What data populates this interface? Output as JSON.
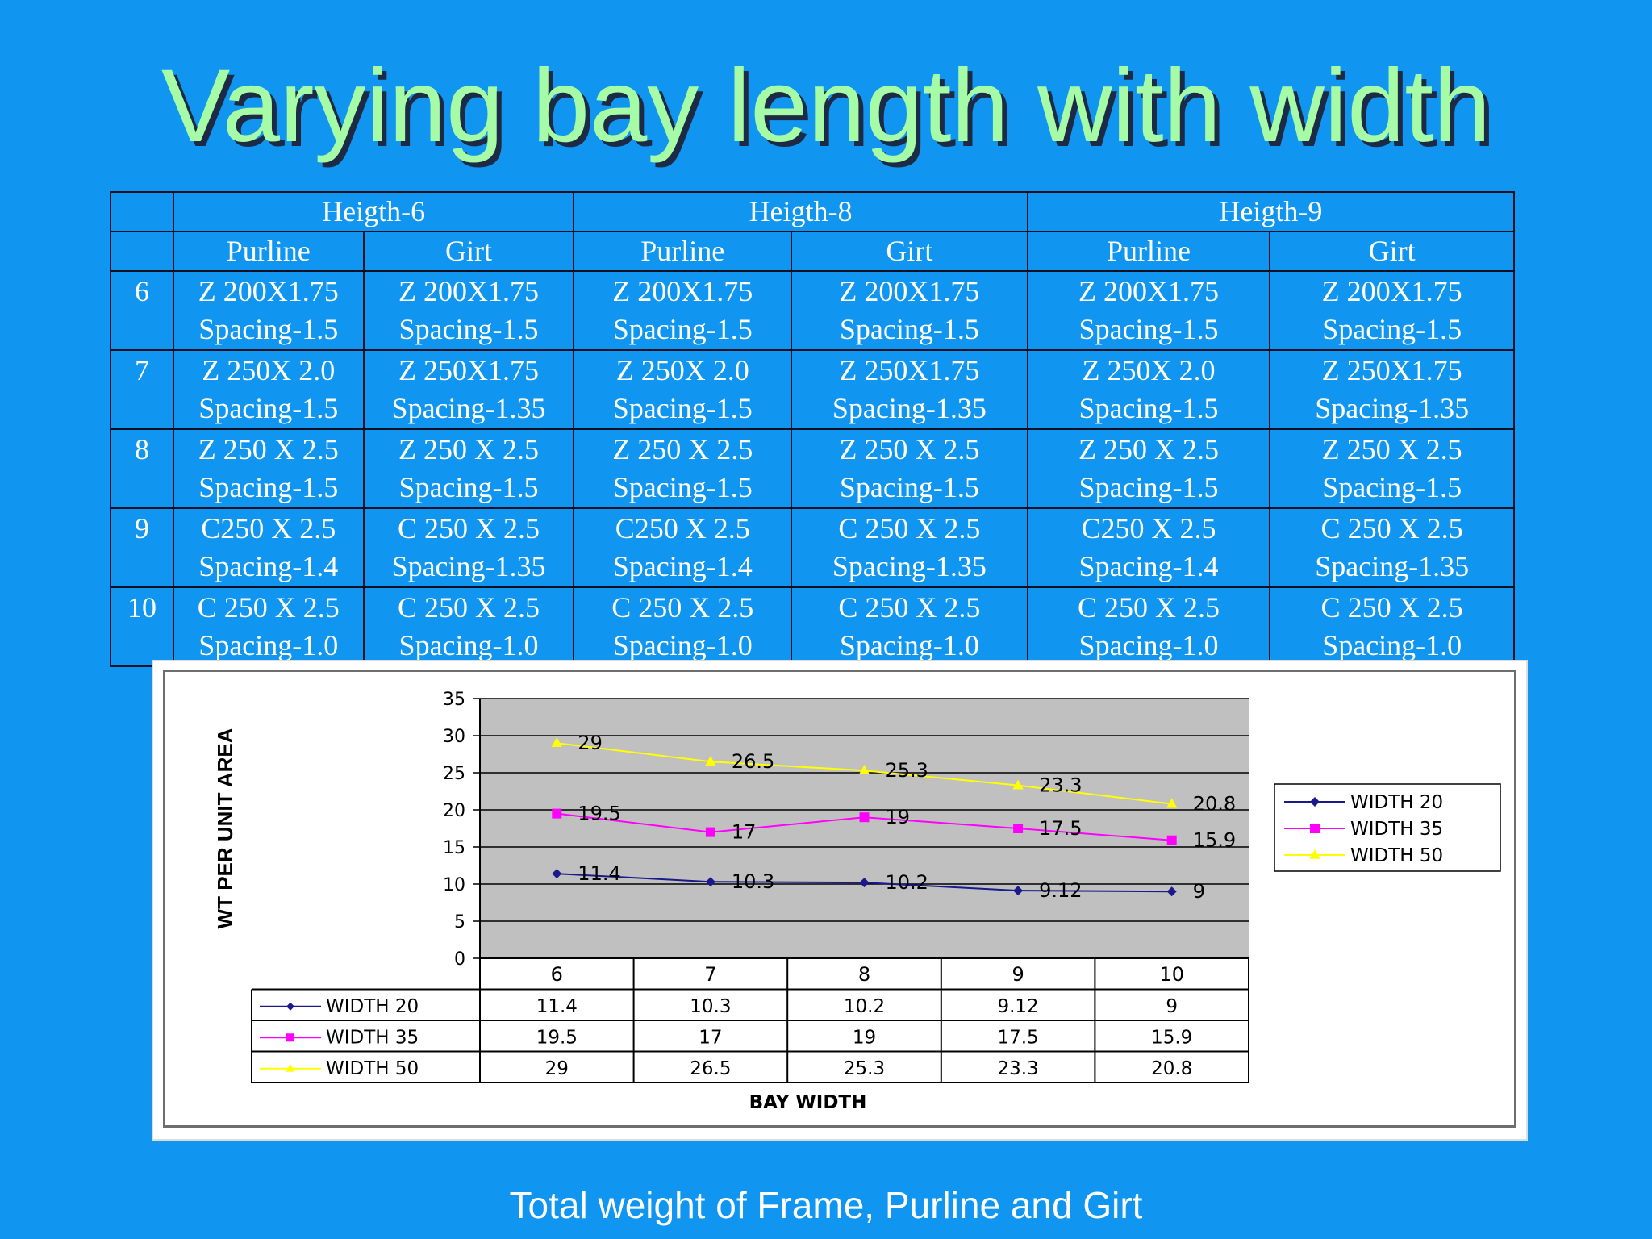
{
  "title": "Varying bay length with width",
  "caption": "Total weight of Frame, Purline and Girt",
  "table": {
    "heights": [
      "Heigth-6",
      "Heigth-8",
      "Heigth-9"
    ],
    "sub_headers": [
      "Purline",
      "Girt",
      "Purline",
      "Girt",
      "Purline",
      "Girt"
    ],
    "rows": [
      {
        "bay": "6",
        "cells": [
          [
            "Z 200X1.75",
            "Spacing-1.5"
          ],
          [
            "Z 200X1.75",
            "Spacing-1.5"
          ],
          [
            "Z 200X1.75",
            "Spacing-1.5"
          ],
          [
            "Z 200X1.75",
            "Spacing-1.5"
          ],
          [
            "Z 200X1.75",
            "Spacing-1.5"
          ],
          [
            "Z 200X1.75",
            "Spacing-1.5"
          ]
        ]
      },
      {
        "bay": "7",
        "cells": [
          [
            "Z 250X 2.0",
            "Spacing-1.5"
          ],
          [
            "Z 250X1.75",
            "Spacing-1.35"
          ],
          [
            "Z 250X 2.0",
            "Spacing-1.5"
          ],
          [
            "Z 250X1.75",
            "Spacing-1.35"
          ],
          [
            "Z 250X 2.0",
            "Spacing-1.5"
          ],
          [
            "Z 250X1.75",
            "Spacing-1.35"
          ]
        ]
      },
      {
        "bay": "8",
        "cells": [
          [
            "Z 250 X 2.5",
            "Spacing-1.5"
          ],
          [
            "Z 250 X 2.5",
            "Spacing-1.5"
          ],
          [
            "Z 250 X 2.5",
            "Spacing-1.5"
          ],
          [
            "Z 250 X 2.5",
            "Spacing-1.5"
          ],
          [
            "Z 250 X 2.5",
            "Spacing-1.5"
          ],
          [
            "Z 250 X 2.5",
            "Spacing-1.5"
          ]
        ]
      },
      {
        "bay": "9",
        "cells": [
          [
            "C250 X 2.5",
            "Spacing-1.4"
          ],
          [
            "C 250 X 2.5",
            "Spacing-1.35"
          ],
          [
            "C250 X 2.5",
            "Spacing-1.4"
          ],
          [
            "C 250 X 2.5",
            "Spacing-1.35"
          ],
          [
            "C250 X 2.5",
            "Spacing-1.4"
          ],
          [
            "C 250 X 2.5",
            "Spacing-1.35"
          ]
        ]
      },
      {
        "bay": "10",
        "cells": [
          [
            "C 250 X 2.5",
            "Spacing-1.0"
          ],
          [
            "C 250 X 2.5",
            "Spacing-1.0"
          ],
          [
            "C 250 X 2.5",
            "Spacing-1.0"
          ],
          [
            "C 250 X 2.5",
            "Spacing-1.0"
          ],
          [
            "C 250 X 2.5",
            "Spacing-1.0"
          ],
          [
            "C 250 X 2.5",
            "Spacing-1.0"
          ]
        ]
      }
    ]
  },
  "chart_data": {
    "type": "line",
    "categories": [
      "6",
      "7",
      "8",
      "9",
      "10"
    ],
    "series": [
      {
        "name": "WIDTH 20",
        "values": [
          11.4,
          10.3,
          10.2,
          9.12,
          9
        ],
        "color": "#1a1a8c",
        "marker": "diamond"
      },
      {
        "name": "WIDTH 35",
        "values": [
          19.5,
          17,
          19,
          17.5,
          15.9
        ],
        "color": "#ff00ff",
        "marker": "square"
      },
      {
        "name": "WIDTH 50",
        "values": [
          29,
          26.5,
          25.3,
          23.3,
          20.8
        ],
        "color": "#ffff00",
        "marker": "triangle"
      }
    ],
    "ylabel": "WT PER UNIT AREA",
    "xlabel": "BAY WIDTH",
    "ylim": [
      0,
      35
    ],
    "yticks": [
      "0",
      "5",
      "10",
      "15",
      "20",
      "25",
      "30",
      "35"
    ],
    "grid": true,
    "legend": "right",
    "data_table": true,
    "plot_bg": "#c0c0c0"
  }
}
